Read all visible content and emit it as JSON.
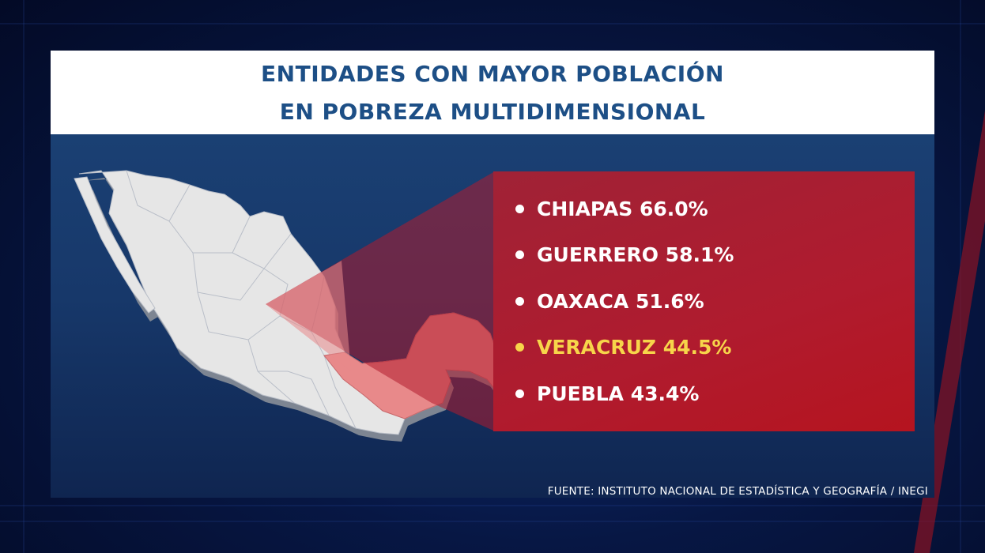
{
  "title": {
    "line1": "ENTIDADES CON MAYOR POBLACIÓN",
    "line2": "EN POBREZA MULTIDIMENSIONAL"
  },
  "items": [
    {
      "label": "CHIAPAS 66.0%",
      "highlight": false
    },
    {
      "label": "GUERRERO 58.1%",
      "highlight": false
    },
    {
      "label": "OAXACA 51.6%",
      "highlight": false
    },
    {
      "label": "VERACRUZ 44.5%",
      "highlight": true
    },
    {
      "label": "PUEBLA 43.4%",
      "highlight": false
    }
  ],
  "source": "FUENTE: INSTITUTO NACIONAL DE ESTADÍSTICA Y GEOGRAFÍA / INEGI",
  "colors": {
    "title_text": "#1d4f86",
    "list_background": "#b01b2e",
    "highlight_text": "#f7d54a",
    "map_fill": "#e6e6e6",
    "map_highlight": "#e8898a"
  }
}
